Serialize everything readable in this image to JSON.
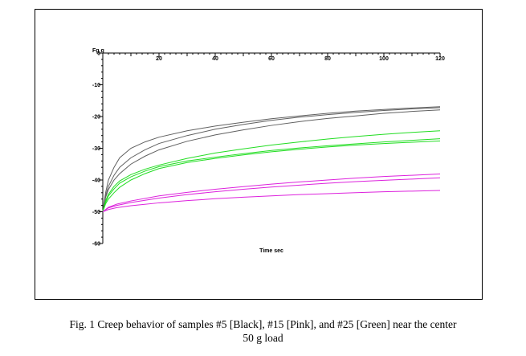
{
  "chart_data": {
    "type": "line",
    "ylabel": "Fg  g",
    "xlabel": "Time  sec",
    "xlim": [
      0,
      120
    ],
    "ylim": [
      -60,
      0
    ],
    "x_ticks": [
      20,
      40,
      60,
      80,
      100,
      120
    ],
    "y_ticks": [
      0,
      -10,
      -20,
      -30,
      -40,
      -50,
      -60
    ],
    "x_tick_labels": [
      "20",
      "40",
      "60",
      "80",
      "100",
      "120"
    ],
    "y_tick_labels": [
      "0",
      "-10",
      "-20",
      "-30",
      "-40",
      "-50",
      "-60"
    ],
    "legend": "none",
    "grid": false,
    "series": [
      {
        "color": "#606060",
        "values": [
          [
            0,
            -50
          ],
          [
            1,
            -44
          ],
          [
            2,
            -40
          ],
          [
            4,
            -36
          ],
          [
            6,
            -33
          ],
          [
            10,
            -30
          ],
          [
            15,
            -28
          ],
          [
            20,
            -26.5
          ],
          [
            30,
            -24.5
          ],
          [
            40,
            -23
          ],
          [
            50,
            -21.8
          ],
          [
            60,
            -20.7
          ],
          [
            70,
            -19.8
          ],
          [
            80,
            -19
          ],
          [
            90,
            -18.3
          ],
          [
            100,
            -17.8
          ],
          [
            110,
            -17.3
          ],
          [
            120,
            -16.9
          ]
        ]
      },
      {
        "color": "#606060",
        "values": [
          [
            0,
            -50
          ],
          [
            1,
            -45
          ],
          [
            2,
            -42
          ],
          [
            4,
            -38.5
          ],
          [
            6,
            -36
          ],
          [
            10,
            -33
          ],
          [
            15,
            -30.5
          ],
          [
            20,
            -28.5
          ],
          [
            30,
            -26
          ],
          [
            40,
            -24
          ],
          [
            50,
            -22.5
          ],
          [
            60,
            -21.2
          ],
          [
            70,
            -20.2
          ],
          [
            80,
            -19.4
          ],
          [
            90,
            -18.7
          ],
          [
            100,
            -18.1
          ],
          [
            110,
            -17.6
          ],
          [
            120,
            -17.2
          ]
        ]
      },
      {
        "color": "#606060",
        "values": [
          [
            0,
            -50
          ],
          [
            1,
            -45.5
          ],
          [
            2,
            -43
          ],
          [
            4,
            -40
          ],
          [
            6,
            -38
          ],
          [
            10,
            -35
          ],
          [
            15,
            -32.5
          ],
          [
            20,
            -30.5
          ],
          [
            30,
            -27.8
          ],
          [
            40,
            -25.8
          ],
          [
            50,
            -24.2
          ],
          [
            60,
            -22.8
          ],
          [
            70,
            -21.6
          ],
          [
            80,
            -20.6
          ],
          [
            90,
            -19.8
          ],
          [
            100,
            -19
          ],
          [
            110,
            -18.4
          ],
          [
            120,
            -17.9
          ]
        ]
      },
      {
        "color": "#22dd22",
        "values": [
          [
            0,
            -50
          ],
          [
            1,
            -46.5
          ],
          [
            2,
            -44.5
          ],
          [
            4,
            -42
          ],
          [
            6,
            -40.3
          ],
          [
            10,
            -38.3
          ],
          [
            15,
            -36.6
          ],
          [
            20,
            -35.3
          ],
          [
            30,
            -33.2
          ],
          [
            40,
            -31.5
          ],
          [
            50,
            -30.2
          ],
          [
            60,
            -29
          ],
          [
            70,
            -28
          ],
          [
            80,
            -27.1
          ],
          [
            90,
            -26.3
          ],
          [
            100,
            -25.6
          ],
          [
            110,
            -25
          ],
          [
            120,
            -24.5
          ]
        ]
      },
      {
        "color": "#22dd22",
        "values": [
          [
            0,
            -50
          ],
          [
            1,
            -47
          ],
          [
            2,
            -45
          ],
          [
            4,
            -42.8
          ],
          [
            6,
            -41
          ],
          [
            10,
            -39
          ],
          [
            15,
            -37.2
          ],
          [
            20,
            -35.8
          ],
          [
            30,
            -34
          ],
          [
            40,
            -32.8
          ],
          [
            50,
            -31.7
          ],
          [
            60,
            -30.7
          ],
          [
            70,
            -29.9
          ],
          [
            80,
            -29.2
          ],
          [
            90,
            -28.6
          ],
          [
            100,
            -28
          ],
          [
            110,
            -27.5
          ],
          [
            120,
            -27
          ]
        ]
      },
      {
        "color": "#22dd22",
        "values": [
          [
            0,
            -50
          ],
          [
            1,
            -47.5
          ],
          [
            2,
            -46
          ],
          [
            4,
            -44
          ],
          [
            6,
            -42.3
          ],
          [
            10,
            -40
          ],
          [
            15,
            -38
          ],
          [
            20,
            -36.4
          ],
          [
            30,
            -34.5
          ],
          [
            40,
            -33.2
          ],
          [
            50,
            -32.1
          ],
          [
            60,
            -31.1
          ],
          [
            70,
            -30.3
          ],
          [
            80,
            -29.6
          ],
          [
            90,
            -29
          ],
          [
            100,
            -28.5
          ],
          [
            110,
            -28.1
          ],
          [
            120,
            -27.7
          ]
        ]
      },
      {
        "color": "#dd22dd",
        "values": [
          [
            0,
            -50
          ],
          [
            2,
            -48.6
          ],
          [
            5,
            -47.6
          ],
          [
            10,
            -46.6
          ],
          [
            20,
            -45
          ],
          [
            30,
            -43.9
          ],
          [
            40,
            -42.9
          ],
          [
            50,
            -42.1
          ],
          [
            60,
            -41.3
          ],
          [
            70,
            -40.6
          ],
          [
            80,
            -40
          ],
          [
            90,
            -39.4
          ],
          [
            100,
            -38.9
          ],
          [
            110,
            -38.5
          ],
          [
            120,
            -38.1
          ]
        ]
      },
      {
        "color": "#dd22dd",
        "values": [
          [
            0,
            -50
          ],
          [
            2,
            -48.8
          ],
          [
            5,
            -48
          ],
          [
            10,
            -47.1
          ],
          [
            20,
            -45.7
          ],
          [
            30,
            -44.6
          ],
          [
            40,
            -43.7
          ],
          [
            50,
            -42.9
          ],
          [
            60,
            -42.2
          ],
          [
            70,
            -41.6
          ],
          [
            80,
            -41
          ],
          [
            90,
            -40.5
          ],
          [
            100,
            -40.1
          ],
          [
            110,
            -39.7
          ],
          [
            120,
            -39.3
          ]
        ]
      },
      {
        "color": "#dd22dd",
        "values": [
          [
            0,
            -50
          ],
          [
            2,
            -49.3
          ],
          [
            5,
            -48.7
          ],
          [
            10,
            -48.1
          ],
          [
            20,
            -47.2
          ],
          [
            30,
            -46.5
          ],
          [
            40,
            -45.9
          ],
          [
            50,
            -45.4
          ],
          [
            60,
            -45
          ],
          [
            70,
            -44.6
          ],
          [
            80,
            -44.3
          ],
          [
            90,
            -44
          ],
          [
            100,
            -43.7
          ],
          [
            110,
            -43.5
          ],
          [
            120,
            -43.3
          ]
        ]
      }
    ]
  },
  "caption": {
    "line1": "Fig. 1 Creep behavior of samples #5 [Black], #15 [Pink], and #25 [Green] near the center",
    "line2": "50 g load"
  }
}
